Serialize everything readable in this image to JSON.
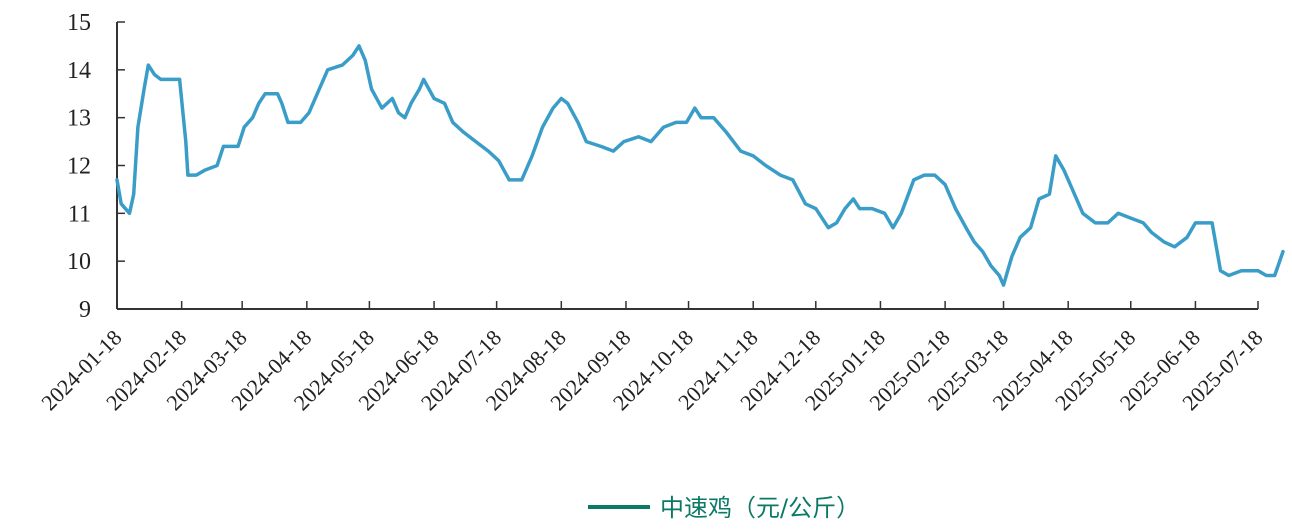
{
  "chart_data": {
    "type": "line",
    "title": "",
    "xlabel": "",
    "ylabel": "",
    "ylim": [
      9,
      15
    ],
    "yticks": [
      9,
      10,
      11,
      12,
      13,
      14,
      15
    ],
    "x_ticks": [
      "2024-01-18",
      "2024-02-18",
      "2024-03-18",
      "2024-04-18",
      "2024-05-18",
      "2024-06-18",
      "2024-07-18",
      "2024-08-18",
      "2024-09-18",
      "2024-10-18",
      "2024-11-18",
      "2024-12-18",
      "2025-01-18",
      "2025-02-18",
      "2025-03-18",
      "2025-04-18",
      "2025-05-18",
      "2025-06-18",
      "2025-07-18"
    ],
    "legend_position": "bottom",
    "grid": false,
    "colors": {
      "line": "#3a9dc8",
      "legend": "#0a7a66",
      "axis": "#333333"
    },
    "series": [
      {
        "name": "中速鸡（元/公斤）",
        "points": [
          [
            "2024-01-18",
            11.7
          ],
          [
            "2024-01-20",
            11.2
          ],
          [
            "2024-01-24",
            11.0
          ],
          [
            "2024-01-26",
            11.4
          ],
          [
            "2024-01-28",
            12.8
          ],
          [
            "2024-01-31",
            13.6
          ],
          [
            "2024-02-02",
            14.1
          ],
          [
            "2024-02-05",
            13.9
          ],
          [
            "2024-02-08",
            13.8
          ],
          [
            "2024-02-13",
            13.8
          ],
          [
            "2024-02-17",
            13.8
          ],
          [
            "2024-02-20",
            12.5
          ],
          [
            "2024-02-21",
            11.8
          ],
          [
            "2024-02-25",
            11.8
          ],
          [
            "2024-02-29",
            11.9
          ],
          [
            "2024-03-06",
            12.0
          ],
          [
            "2024-03-09",
            12.4
          ],
          [
            "2024-03-16",
            12.4
          ],
          [
            "2024-03-19",
            12.8
          ],
          [
            "2024-03-23",
            13.0
          ],
          [
            "2024-03-26",
            13.3
          ],
          [
            "2024-03-29",
            13.5
          ],
          [
            "2024-04-04",
            13.5
          ],
          [
            "2024-04-06",
            13.3
          ],
          [
            "2024-04-09",
            12.9
          ],
          [
            "2024-04-15",
            12.9
          ],
          [
            "2024-04-19",
            13.1
          ],
          [
            "2024-04-25",
            13.7
          ],
          [
            "2024-04-28",
            14.0
          ],
          [
            "2024-05-05",
            14.1
          ],
          [
            "2024-05-10",
            14.3
          ],
          [
            "2024-05-13",
            14.5
          ],
          [
            "2024-05-16",
            14.2
          ],
          [
            "2024-05-19",
            13.6
          ],
          [
            "2024-05-24",
            13.2
          ],
          [
            "2024-05-29",
            13.4
          ],
          [
            "2024-06-01",
            13.1
          ],
          [
            "2024-06-04",
            13.0
          ],
          [
            "2024-06-07",
            13.3
          ],
          [
            "2024-06-11",
            13.6
          ],
          [
            "2024-06-13",
            13.8
          ],
          [
            "2024-06-18",
            13.4
          ],
          [
            "2024-06-23",
            13.3
          ],
          [
            "2024-06-27",
            12.9
          ],
          [
            "2024-07-02",
            12.7
          ],
          [
            "2024-07-08",
            12.5
          ],
          [
            "2024-07-14",
            12.3
          ],
          [
            "2024-07-19",
            12.1
          ],
          [
            "2024-07-24",
            11.7
          ],
          [
            "2024-07-30",
            11.7
          ],
          [
            "2024-08-04",
            12.2
          ],
          [
            "2024-08-09",
            12.8
          ],
          [
            "2024-08-14",
            13.2
          ],
          [
            "2024-08-18",
            13.4
          ],
          [
            "2024-08-21",
            13.3
          ],
          [
            "2024-08-26",
            12.9
          ],
          [
            "2024-08-30",
            12.5
          ],
          [
            "2024-09-06",
            12.4
          ],
          [
            "2024-09-12",
            12.3
          ],
          [
            "2024-09-17",
            12.5
          ],
          [
            "2024-09-24",
            12.6
          ],
          [
            "2024-09-30",
            12.5
          ],
          [
            "2024-10-06",
            12.8
          ],
          [
            "2024-10-12",
            12.9
          ],
          [
            "2024-10-17",
            12.9
          ],
          [
            "2024-10-21",
            13.2
          ],
          [
            "2024-10-24",
            13.0
          ],
          [
            "2024-10-30",
            13.0
          ],
          [
            "2024-11-05",
            12.7
          ],
          [
            "2024-11-12",
            12.3
          ],
          [
            "2024-11-18",
            12.2
          ],
          [
            "2024-11-24",
            12.0
          ],
          [
            "2024-12-01",
            11.8
          ],
          [
            "2024-12-07",
            11.7
          ],
          [
            "2024-12-13",
            11.2
          ],
          [
            "2024-12-18",
            11.1
          ],
          [
            "2024-12-24",
            10.7
          ],
          [
            "2024-12-28",
            10.8
          ],
          [
            "2025-01-01",
            11.1
          ],
          [
            "2025-01-05",
            11.3
          ],
          [
            "2025-01-08",
            11.1
          ],
          [
            "2025-01-14",
            11.1
          ],
          [
            "2025-01-20",
            11.0
          ],
          [
            "2025-01-24",
            10.7
          ],
          [
            "2025-01-28",
            11.0
          ],
          [
            "2025-02-03",
            11.7
          ],
          [
            "2025-02-08",
            11.8
          ],
          [
            "2025-02-13",
            11.8
          ],
          [
            "2025-02-18",
            11.6
          ],
          [
            "2025-02-23",
            11.1
          ],
          [
            "2025-02-28",
            10.7
          ],
          [
            "2025-03-04",
            10.4
          ],
          [
            "2025-03-08",
            10.2
          ],
          [
            "2025-03-12",
            9.9
          ],
          [
            "2025-03-16",
            9.7
          ],
          [
            "2025-03-18",
            9.5
          ],
          [
            "2025-03-22",
            10.1
          ],
          [
            "2025-03-26",
            10.5
          ],
          [
            "2025-03-31",
            10.7
          ],
          [
            "2025-04-04",
            11.3
          ],
          [
            "2025-04-09",
            11.4
          ],
          [
            "2025-04-12",
            12.2
          ],
          [
            "2025-04-16",
            11.9
          ],
          [
            "2025-04-20",
            11.5
          ],
          [
            "2025-04-25",
            11.0
          ],
          [
            "2025-05-01",
            10.8
          ],
          [
            "2025-05-07",
            10.8
          ],
          [
            "2025-05-12",
            11.0
          ],
          [
            "2025-05-18",
            10.9
          ],
          [
            "2025-05-24",
            10.8
          ],
          [
            "2025-05-28",
            10.6
          ],
          [
            "2025-06-03",
            10.4
          ],
          [
            "2025-06-08",
            10.3
          ],
          [
            "2025-06-14",
            10.5
          ],
          [
            "2025-06-18",
            10.8
          ],
          [
            "2025-06-26",
            10.8
          ],
          [
            "2025-06-30",
            9.8
          ],
          [
            "2025-07-04",
            9.7
          ],
          [
            "2025-07-10",
            9.8
          ],
          [
            "2025-07-18",
            9.8
          ],
          [
            "2025-07-22",
            9.7
          ],
          [
            "2025-07-26",
            9.7
          ],
          [
            "2025-07-30",
            10.2
          ]
        ]
      }
    ]
  }
}
